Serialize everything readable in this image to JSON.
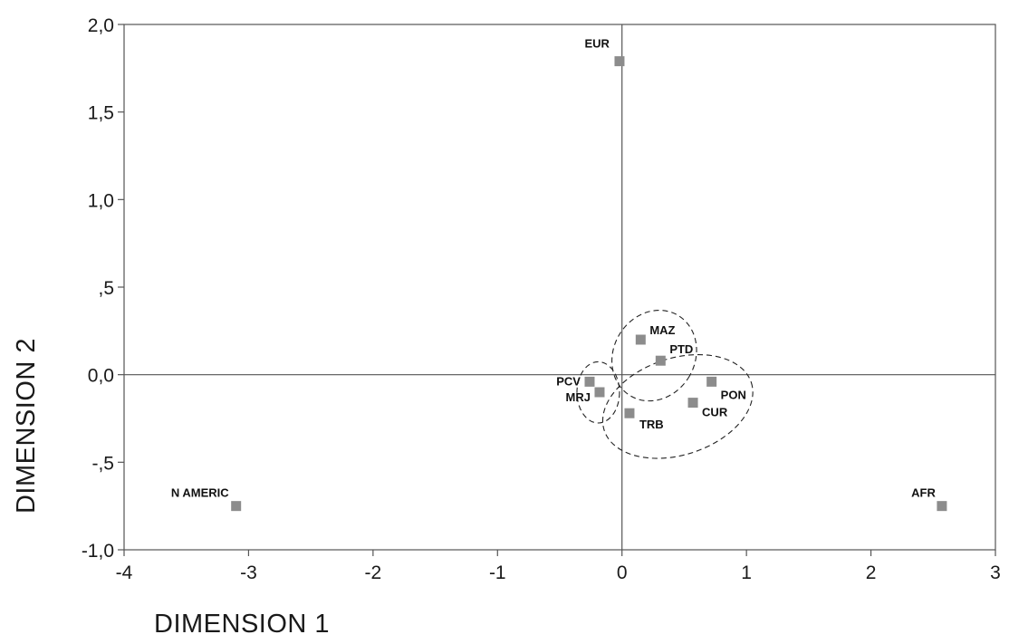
{
  "chart_data": {
    "type": "scatter",
    "title": "",
    "xlabel": "DIMENSION 1",
    "ylabel": "DIMENSION 2",
    "xlim": [
      -4,
      3
    ],
    "ylim": [
      -1.0,
      2.0
    ],
    "x_ticks": [
      -4,
      -3,
      -2,
      -1,
      0,
      1,
      2,
      3
    ],
    "x_tick_labels": [
      "-4",
      "-3",
      "-2",
      "-1",
      "0",
      "1",
      "2",
      "3"
    ],
    "y_ticks": [
      -1.0,
      -0.5,
      0.0,
      0.5,
      1.0,
      1.5,
      2.0
    ],
    "y_tick_labels": [
      "-1,0",
      "-,5",
      "0,0",
      ",5",
      "1,0",
      "1,5",
      "2,0"
    ],
    "reference_lines": {
      "x": 0,
      "y": 0
    },
    "grid": false,
    "legend": "none",
    "marker_color": "#8c8c8c",
    "points": [
      {
        "label": "EUR",
        "x": -0.02,
        "y": 1.79
      },
      {
        "label": "N AMERIC",
        "x": -3.1,
        "y": -0.75
      },
      {
        "label": "AFR",
        "x": 2.57,
        "y": -0.75
      },
      {
        "label": "MAZ",
        "x": 0.15,
        "y": 0.2
      },
      {
        "label": "PTD",
        "x": 0.31,
        "y": 0.08
      },
      {
        "label": "PCV",
        "x": -0.26,
        "y": -0.04
      },
      {
        "label": "MRJ",
        "x": -0.18,
        "y": -0.1
      },
      {
        "label": "PON",
        "x": 0.72,
        "y": -0.04
      },
      {
        "label": "CUR",
        "x": 0.57,
        "y": -0.16
      },
      {
        "label": "TRB",
        "x": 0.06,
        "y": -0.22
      }
    ],
    "groups": [
      {
        "members": [
          "MAZ",
          "PTD"
        ]
      },
      {
        "members": [
          "PCV",
          "MRJ"
        ]
      },
      {
        "members": [
          "PON",
          "CUR",
          "TRB"
        ]
      }
    ]
  }
}
